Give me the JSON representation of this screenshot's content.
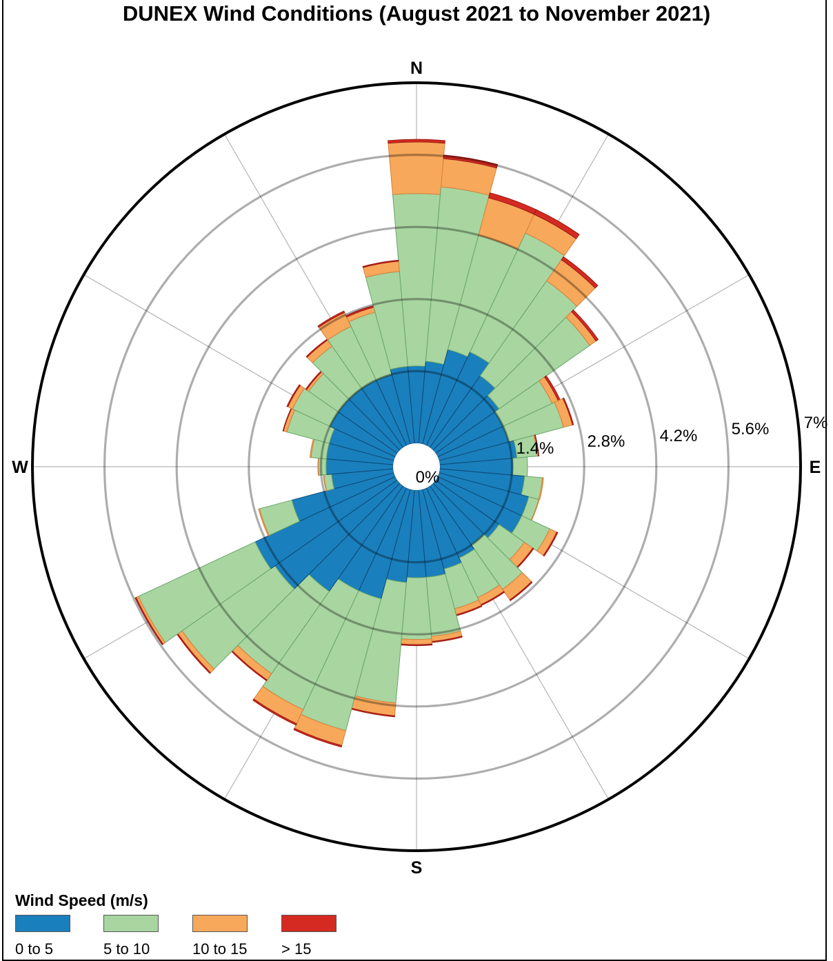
{
  "chart_data": {
    "type": "windrose",
    "title": "DUNEX Wind Conditions (August 2021 to November 2021)",
    "directions": [
      "N",
      "E",
      "S",
      "W"
    ],
    "radial_ticks": [
      "0%",
      "1.4%",
      "2.8%",
      "4.2%",
      "5.6%",
      "7%"
    ],
    "radial_max": 7,
    "sector_width_deg": 10,
    "legend_title": "Wind Speed (m/s)",
    "bins": [
      {
        "name": "0 to 5",
        "color": "#1a7fbd"
      },
      {
        "name": "5 to 10",
        "color": "#a8d5a0"
      },
      {
        "name": "10 to 15",
        "color": "#f7a85a"
      },
      {
        "name": "> 15",
        "color": "#d42a22"
      }
    ],
    "sectors": [
      {
        "dir": 0,
        "cumulative": [
          1.5,
          4.85,
          5.85,
          5.9
        ]
      },
      {
        "dir": 10,
        "cumulative": [
          1.6,
          5.0,
          5.55,
          5.62
        ]
      },
      {
        "dir": 20,
        "cumulative": [
          1.9,
          4.2,
          4.95,
          5.05
        ]
      },
      {
        "dir": 30,
        "cumulative": [
          2.0,
          4.55,
          4.95,
          5.05
        ]
      },
      {
        "dir": 40,
        "cumulative": [
          1.7,
          3.95,
          4.45,
          4.52
        ]
      },
      {
        "dir": 50,
        "cumulative": [
          1.5,
          3.65,
          3.8,
          3.85
        ]
      },
      {
        "dir": 60,
        "cumulative": [
          1.4,
          2.45,
          2.58,
          2.62
        ]
      },
      {
        "dir": 70,
        "cumulative": [
          1.4,
          2.5,
          2.68,
          2.7
        ]
      },
      {
        "dir": 80,
        "cumulative": [
          1.5,
          1.9,
          1.92,
          1.93
        ]
      },
      {
        "dir": 90,
        "cumulative": [
          1.42,
          1.7,
          1.7,
          1.7
        ]
      },
      {
        "dir": 100,
        "cumulative": [
          1.65,
          2.0,
          2.02,
          2.02
        ]
      },
      {
        "dir": 110,
        "cumulative": [
          1.8,
          2.0,
          2.01,
          2.01
        ]
      },
      {
        "dir": 120,
        "cumulative": [
          1.8,
          2.4,
          2.55,
          2.57
        ]
      },
      {
        "dir": 130,
        "cumulative": [
          1.5,
          2.1,
          2.3,
          2.32
        ]
      },
      {
        "dir": 140,
        "cumulative": [
          1.4,
          2.45,
          2.7,
          2.72
        ]
      },
      {
        "dir": 150,
        "cumulative": [
          1.5,
          2.35,
          2.5,
          2.52
        ]
      },
      {
        "dir": 160,
        "cumulative": [
          1.6,
          2.4,
          2.52,
          2.54
        ]
      },
      {
        "dir": 170,
        "cumulative": [
          1.7,
          2.85,
          2.95,
          2.97
        ]
      },
      {
        "dir": 180,
        "cumulative": [
          1.7,
          2.9,
          3.0,
          3.02
        ]
      },
      {
        "dir": 190,
        "cumulative": [
          1.8,
          4.15,
          4.4,
          4.42
        ]
      },
      {
        "dir": 200,
        "cumulative": [
          2.2,
          4.85,
          5.15,
          5.18
        ]
      },
      {
        "dir": 210,
        "cumulative": [
          2.2,
          4.75,
          5.05,
          5.08
        ]
      },
      {
        "dir": 220,
        "cumulative": [
          2.5,
          4.45,
          4.6,
          4.62
        ]
      },
      {
        "dir": 230,
        "cumulative": [
          2.9,
          5.1,
          5.2,
          5.22
        ]
      },
      {
        "dir": 240,
        "cumulative": [
          3.0,
          5.5,
          5.55,
          5.57
        ]
      },
      {
        "dir": 250,
        "cumulative": [
          2.05,
          2.7,
          2.72,
          2.72
        ]
      },
      {
        "dir": 260,
        "cumulative": [
          1.2,
          1.35,
          1.36,
          1.36
        ]
      },
      {
        "dir": 270,
        "cumulative": [
          1.3,
          1.45,
          1.46,
          1.46
        ]
      },
      {
        "dir": 280,
        "cumulative": [
          1.3,
          1.6,
          1.62,
          1.62
        ]
      },
      {
        "dir": 290,
        "cumulative": [
          1.3,
          2.15,
          2.22,
          2.23
        ]
      },
      {
        "dir": 300,
        "cumulative": [
          1.4,
          2.2,
          2.3,
          2.32
        ]
      },
      {
        "dir": 310,
        "cumulative": [
          1.4,
          2.1,
          2.15,
          2.17
        ]
      },
      {
        "dir": 320,
        "cumulative": [
          1.4,
          2.4,
          2.55,
          2.57
        ]
      },
      {
        "dir": 330,
        "cumulative": [
          1.4,
          2.55,
          2.85,
          2.88
        ]
      },
      {
        "dir": 340,
        "cumulative": [
          1.4,
          2.65,
          2.75,
          2.78
        ]
      },
      {
        "dir": 350,
        "cumulative": [
          1.5,
          3.35,
          3.55,
          3.57
        ]
      }
    ]
  }
}
